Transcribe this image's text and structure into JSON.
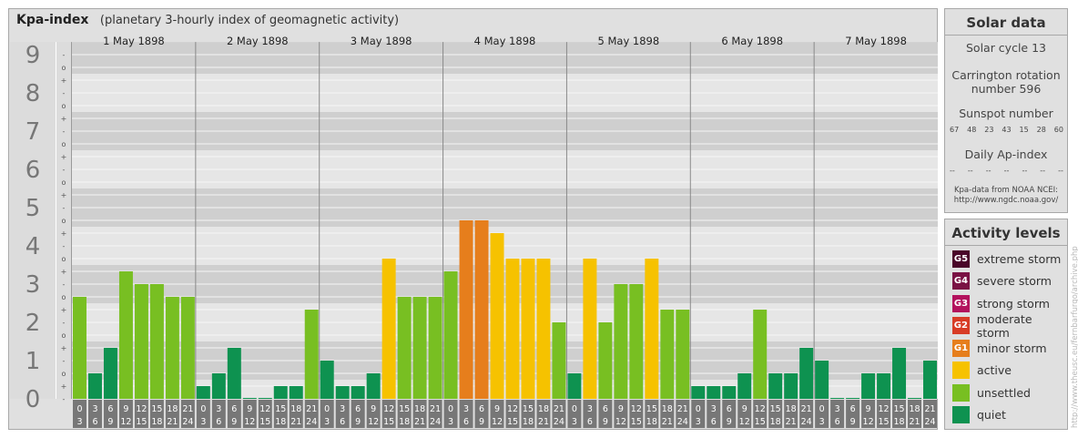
{
  "header": {
    "title": "Kpa-index",
    "subtitle": "(planetary 3-hourly index of geomagnetic activity)"
  },
  "colors": {
    "quiet": "#0e9250",
    "unsettled": "#78bf22",
    "active": "#f6c200",
    "minor_storm": "#e67e1c",
    "moderate_storm": "#d83c26",
    "strong_storm": "#b3125d",
    "severe_storm": "#7a1244",
    "extreme_storm": "#4a0629"
  },
  "chart_data": {
    "type": "bar",
    "y_levels": [
      "0",
      "1",
      "2",
      "3",
      "4",
      "5",
      "6",
      "7",
      "8",
      "9"
    ],
    "sub_ticks": [
      "+",
      "o",
      "-"
    ],
    "ylim": [
      0,
      9.33
    ],
    "days": [
      "1 May 1898",
      "2 May 1898",
      "3 May 1898",
      "4 May 1898",
      "5 May 1898",
      "6 May 1898",
      "7 May 1898"
    ],
    "hour_labels": [
      [
        "0",
        "3"
      ],
      [
        "3",
        "6"
      ],
      [
        "6",
        "9"
      ],
      [
        "9",
        "12"
      ],
      [
        "12",
        "15"
      ],
      [
        "15",
        "18"
      ],
      [
        "18",
        "21"
      ],
      [
        "21",
        "24"
      ]
    ],
    "values": [
      [
        2.667,
        0.667,
        1.333,
        3.333,
        3.0,
        3.0,
        2.667,
        2.667
      ],
      [
        0.333,
        0.667,
        1.333,
        0.0,
        0.0,
        0.333,
        0.333,
        2.333
      ],
      [
        1.0,
        0.333,
        0.333,
        0.667,
        3.667,
        2.667,
        2.667,
        2.667
      ],
      [
        3.333,
        4.667,
        4.667,
        4.333,
        3.667,
        3.667,
        3.667,
        2.0
      ],
      [
        0.667,
        3.667,
        2.0,
        3.0,
        3.0,
        3.667,
        2.333,
        2.333
      ],
      [
        0.333,
        0.333,
        0.333,
        0.667,
        2.333,
        0.667,
        0.667,
        1.333
      ],
      [
        1.0,
        0.0,
        0.0,
        0.667,
        0.667,
        1.333,
        0.0,
        1.0
      ]
    ]
  },
  "solar": {
    "title": "Solar data",
    "cycle": "Solar cycle 13",
    "rotation_line1": "Carrington rotation",
    "rotation_line2": "number 596",
    "sunspot_title": "Sunspot number",
    "sunspots": [
      "67",
      "48",
      "23",
      "43",
      "15",
      "28",
      "60"
    ],
    "ap_title": "Daily Ap-index",
    "ap": [
      "--",
      "--",
      "--",
      "--",
      "--",
      "--",
      "--"
    ],
    "source_line1": "Kpa-data from NOAA NCEI:",
    "source_line2": "http://www.ngdc.noaa.gov/"
  },
  "activity": {
    "title": "Activity levels",
    "levels": [
      {
        "badge": "G5",
        "label": "extreme storm",
        "color": "#4a0629"
      },
      {
        "badge": "G4",
        "label": "severe storm",
        "color": "#7a1244"
      },
      {
        "badge": "G3",
        "label": "strong storm",
        "color": "#b3125d"
      },
      {
        "badge": "G2",
        "label": "moderate storm",
        "color": "#d83c26"
      },
      {
        "badge": "G1",
        "label": "minor storm",
        "color": "#e67e1c"
      },
      {
        "badge": "",
        "label": "active",
        "color": "#f6c200"
      },
      {
        "badge": "",
        "label": "unsettled",
        "color": "#78bf22"
      },
      {
        "badge": "",
        "label": "quiet",
        "color": "#0e9250"
      }
    ]
  },
  "credit": "http://www.theusc.eu/fernbarfurgo/archive.php"
}
